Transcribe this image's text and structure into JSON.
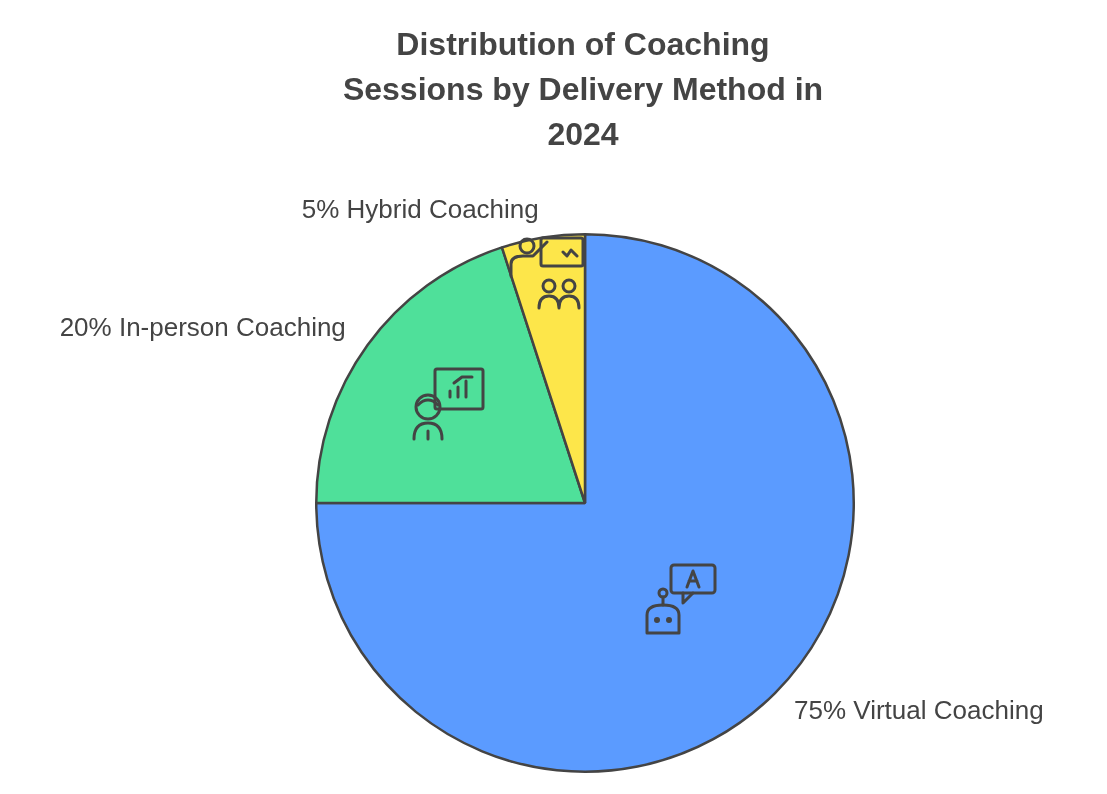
{
  "chart_data": {
    "type": "pie",
    "title": "Distribution of Coaching Sessions by Delivery Method in 2024",
    "categories": [
      "Virtual Coaching",
      "In-person Coaching",
      "Hybrid Coaching"
    ],
    "values": [
      75,
      20,
      5
    ],
    "value_labels": [
      "75%",
      "20%",
      "5%"
    ],
    "colors": [
      "#5b9bff",
      "#4fe09a",
      "#fde64a"
    ]
  }
}
